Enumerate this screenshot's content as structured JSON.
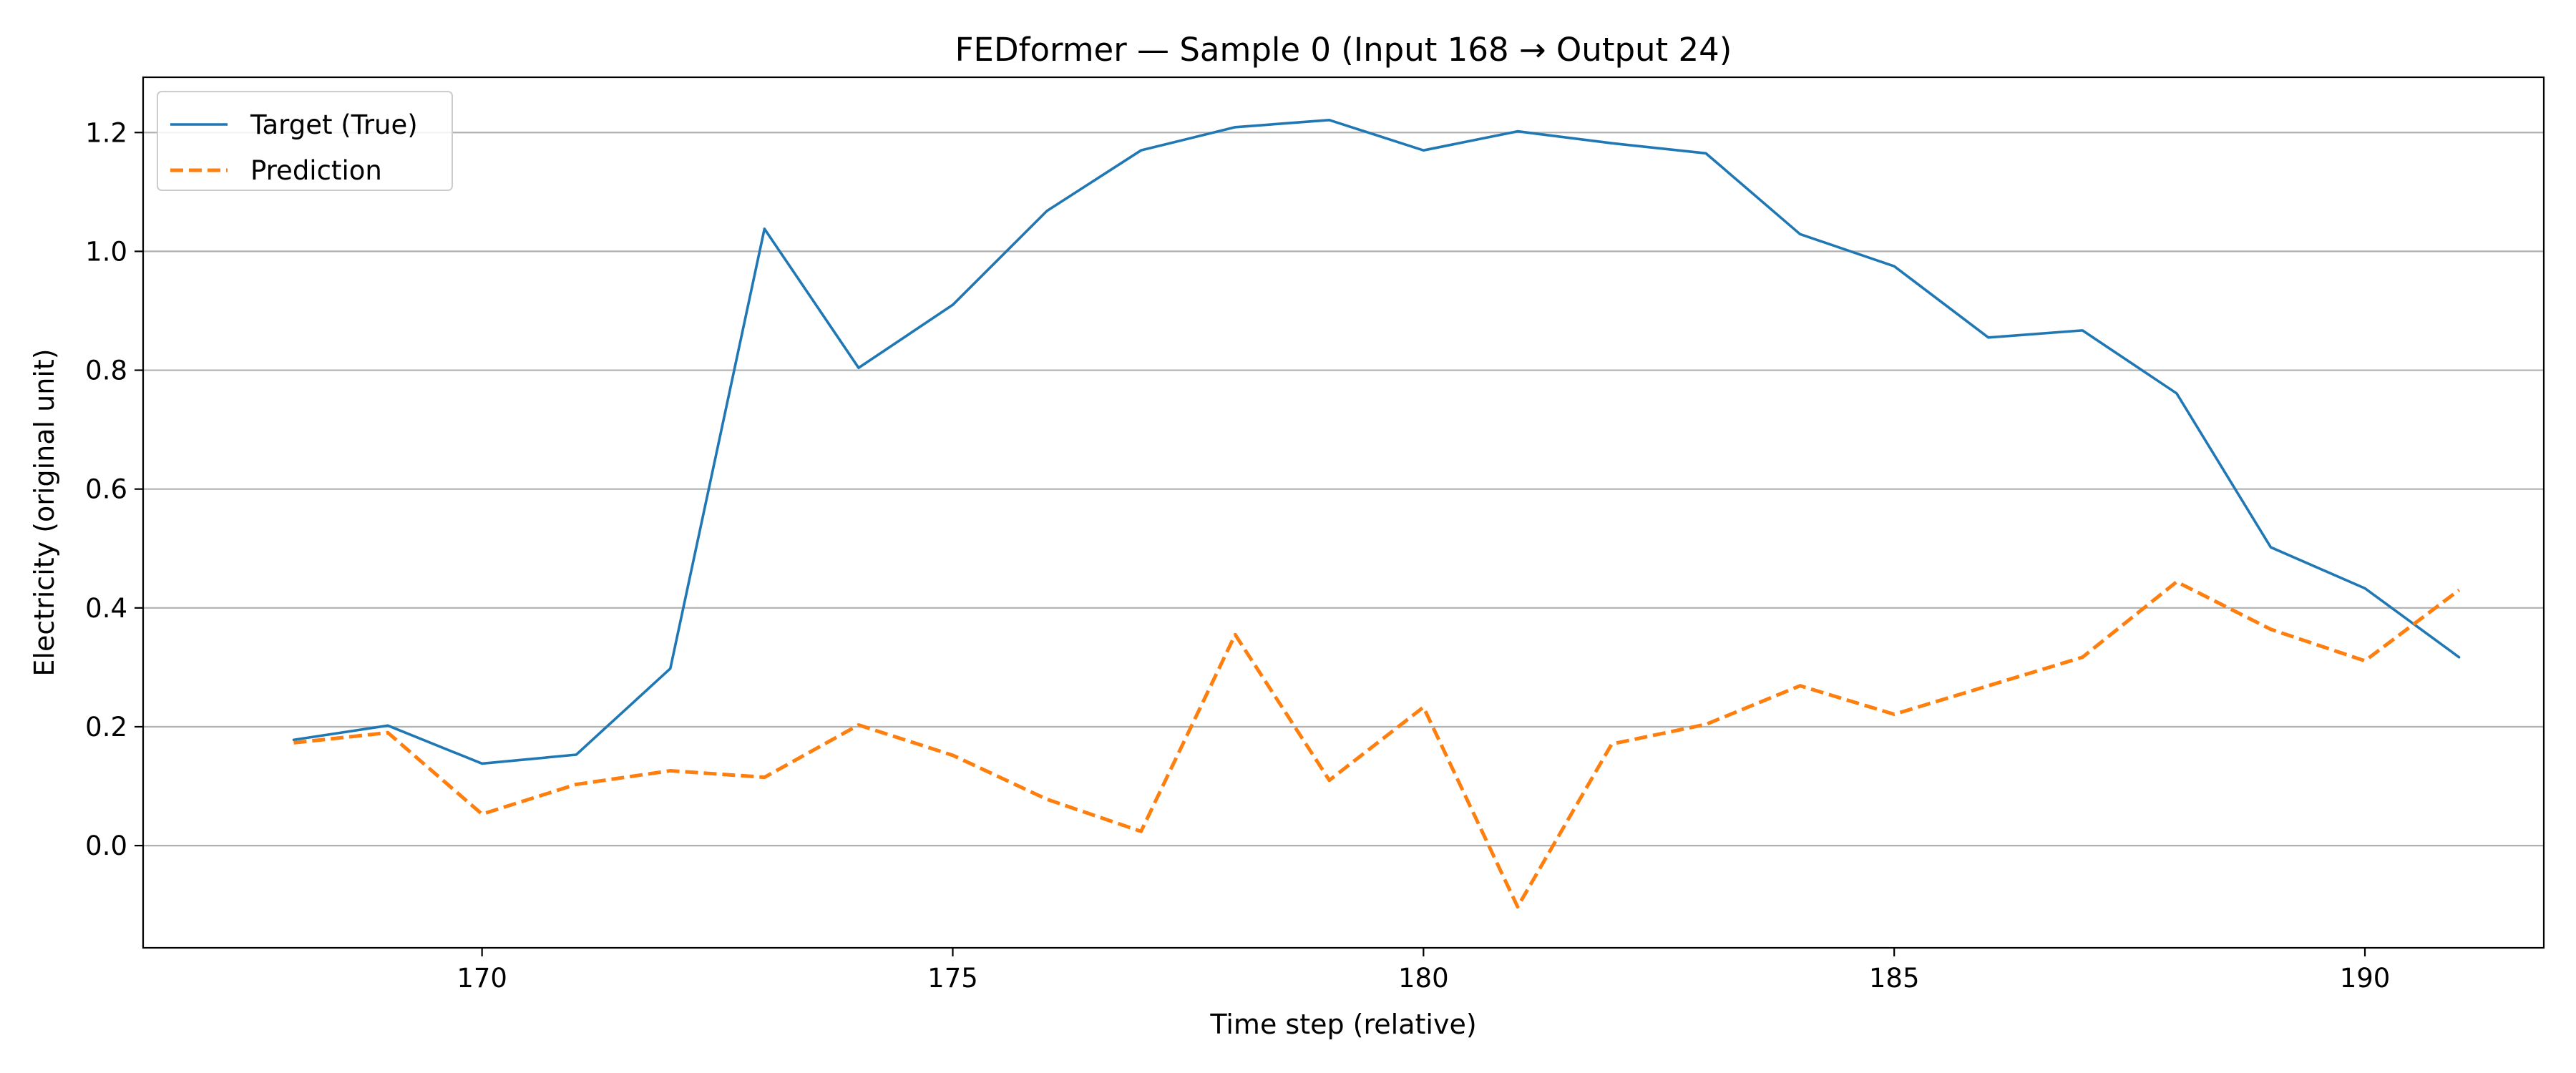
{
  "chart_data": {
    "type": "line",
    "title": "FEDformer — Sample 0 (Input 168 → Output 24)",
    "xlabel": "Time step (relative)",
    "ylabel": "Electricity (original unit)",
    "x": [
      168,
      169,
      170,
      171,
      172,
      173,
      174,
      175,
      176,
      177,
      178,
      179,
      180,
      181,
      182,
      183,
      184,
      185,
      186,
      187,
      188,
      189,
      190,
      191
    ],
    "series": [
      {
        "name": "Target (True)",
        "color": "#1f77b4",
        "style": "solid",
        "values": [
          0.178,
          0.202,
          0.138,
          0.153,
          0.298,
          1.038,
          0.804,
          0.91,
          1.068,
          1.17,
          1.209,
          1.221,
          1.17,
          1.202,
          1.182,
          1.165,
          1.029,
          0.975,
          0.855,
          0.867,
          0.761,
          0.502,
          0.433,
          0.317
        ]
      },
      {
        "name": "Prediction",
        "color": "#ff7f0e",
        "style": "dashed",
        "values": [
          0.173,
          0.19,
          0.053,
          0.103,
          0.126,
          0.115,
          0.203,
          0.152,
          0.078,
          0.024,
          0.355,
          0.11,
          0.233,
          -0.103,
          0.171,
          0.204,
          0.269,
          0.221,
          0.269,
          0.317,
          0.444,
          0.364,
          0.311,
          0.43
        ]
      }
    ],
    "xlim": [
      166.4,
      191.9
    ],
    "ylim": [
      -0.172,
      1.293
    ],
    "xticks": [
      170,
      175,
      180,
      185,
      190
    ],
    "yticks": [
      0.0,
      0.2,
      0.4,
      0.6,
      0.8,
      1.0,
      1.2
    ],
    "ytick_labels": [
      "0.0",
      "0.2",
      "0.4",
      "0.6",
      "0.8",
      "1.0",
      "1.2"
    ],
    "grid": "horizontal",
    "legend_position": "upper left"
  }
}
